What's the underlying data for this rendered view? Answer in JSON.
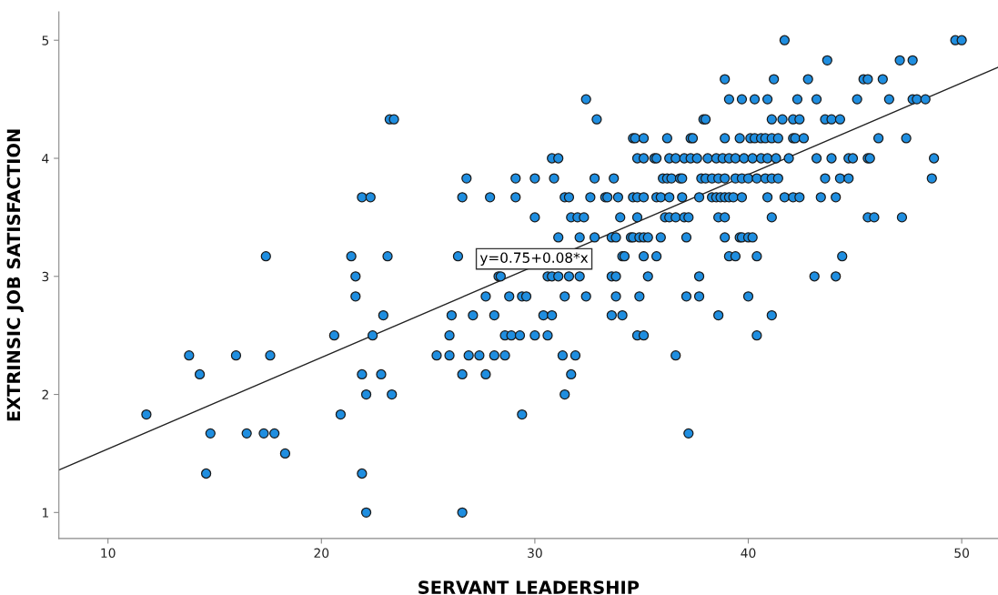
{
  "chart_data": {
    "type": "scatter",
    "xlabel": "SERVANT LEADERSHIP",
    "ylabel": "EXTRINSIC JOB SATISFACTION",
    "xlim": [
      7.7,
      51.7
    ],
    "ylim": [
      0.78,
      5.24
    ],
    "xticks": [
      10,
      20,
      30,
      40,
      50
    ],
    "yticks": [
      1,
      2,
      3,
      4,
      5
    ],
    "marker": "circle",
    "annotations": [
      "y=0.75+0.08*x"
    ],
    "series": [
      {
        "color": "#1f8ee0",
        "x": [
          41.7,
          49.7,
          50.0,
          43.7,
          47.1,
          47.7,
          38.9,
          41.2,
          42.8,
          45.4,
          45.6,
          46.3,
          32.4,
          39.1,
          39.7,
          40.3,
          40.9,
          42.3,
          43.2,
          45.1,
          46.6,
          47.7,
          47.9,
          48.3,
          23.2,
          23.4,
          32.9,
          37.9,
          38.0,
          41.1,
          41.6,
          42.1,
          42.4,
          43.6,
          43.9,
          44.3,
          34.6,
          34.7,
          35.1,
          36.2,
          37.3,
          37.4,
          38.9,
          39.6,
          40.1,
          40.3,
          40.6,
          40.8,
          41.1,
          41.4,
          42.1,
          42.2,
          42.6,
          46.1,
          47.4,
          30.8,
          31.1,
          34.8,
          35.1,
          35.6,
          35.7,
          36.3,
          36.6,
          37.0,
          37.3,
          37.6,
          38.1,
          38.5,
          38.8,
          39.1,
          39.4,
          39.8,
          40.2,
          40.6,
          40.9,
          41.3,
          41.9,
          43.2,
          43.9,
          44.7,
          44.9,
          45.6,
          45.7,
          48.7,
          26.8,
          29.1,
          30.0,
          30.9,
          32.8,
          33.7,
          36.0,
          36.2,
          36.4,
          36.8,
          36.9,
          37.8,
          38.0,
          38.3,
          38.6,
          38.9,
          39.4,
          39.7,
          40.0,
          40.4,
          40.8,
          41.1,
          41.4,
          43.6,
          44.3,
          44.7,
          48.6,
          21.9,
          22.3,
          26.6,
          27.9,
          29.1,
          31.4,
          31.6,
          32.6,
          33.3,
          33.4,
          33.9,
          34.6,
          34.8,
          35.1,
          35.7,
          35.9,
          36.3,
          36.9,
          37.7,
          38.3,
          38.5,
          38.7,
          38.9,
          39.1,
          39.3,
          39.7,
          40.9,
          41.7,
          42.1,
          42.4,
          43.4,
          44.1,
          30.0,
          31.7,
          32.0,
          32.3,
          34.0,
          34.8,
          36.1,
          36.3,
          36.6,
          37.0,
          37.2,
          38.6,
          38.9,
          41.1,
          45.6,
          45.9,
          47.2,
          31.1,
          32.1,
          32.8,
          33.6,
          33.8,
          34.5,
          34.6,
          34.9,
          35.1,
          35.3,
          35.9,
          37.1,
          38.9,
          39.6,
          39.7,
          40.0,
          40.2,
          17.4,
          21.4,
          23.1,
          26.4,
          34.1,
          34.2,
          35.1,
          35.7,
          39.1,
          39.4,
          40.4,
          44.4,
          21.6,
          28.3,
          28.4,
          30.6,
          30.8,
          31.1,
          31.6,
          32.1,
          33.6,
          33.8,
          35.3,
          37.7,
          43.1,
          44.1,
          21.6,
          27.7,
          28.8,
          29.4,
          29.6,
          31.4,
          32.4,
          33.8,
          34.9,
          37.1,
          37.7,
          40.0,
          22.9,
          26.1,
          27.1,
          28.1,
          30.4,
          30.8,
          33.6,
          34.1,
          38.6,
          41.1,
          20.6,
          22.4,
          26.0,
          28.6,
          28.9,
          29.3,
          30.0,
          30.6,
          34.8,
          35.1,
          40.4,
          13.8,
          16.0,
          17.6,
          25.4,
          26.0,
          26.9,
          27.4,
          28.1,
          28.6,
          31.3,
          31.9,
          36.6,
          14.3,
          21.9,
          22.8,
          26.6,
          27.7,
          31.7,
          22.1,
          23.3,
          31.4,
          11.8,
          20.9,
          29.4,
          14.8,
          16.5,
          17.3,
          17.8,
          37.2,
          18.3,
          14.6,
          21.9,
          22.1,
          26.6
        ],
        "values": [
          5,
          5,
          5,
          4.83,
          4.83,
          4.83,
          4.67,
          4.67,
          4.67,
          4.67,
          4.67,
          4.67,
          4.5,
          4.5,
          4.5,
          4.5,
          4.5,
          4.5,
          4.5,
          4.5,
          4.5,
          4.5,
          4.5,
          4.5,
          4.33,
          4.33,
          4.33,
          4.33,
          4.33,
          4.33,
          4.33,
          4.33,
          4.33,
          4.33,
          4.33,
          4.33,
          4.17,
          4.17,
          4.17,
          4.17,
          4.17,
          4.17,
          4.17,
          4.17,
          4.17,
          4.17,
          4.17,
          4.17,
          4.17,
          4.17,
          4.17,
          4.17,
          4.17,
          4.17,
          4.17,
          4,
          4,
          4,
          4,
          4,
          4,
          4,
          4,
          4,
          4,
          4,
          4,
          4,
          4,
          4,
          4,
          4,
          4,
          4,
          4,
          4,
          4,
          4,
          4,
          4,
          4,
          4,
          4,
          4,
          3.83,
          3.83,
          3.83,
          3.83,
          3.83,
          3.83,
          3.83,
          3.83,
          3.83,
          3.83,
          3.83,
          3.83,
          3.83,
          3.83,
          3.83,
          3.83,
          3.83,
          3.83,
          3.83,
          3.83,
          3.83,
          3.83,
          3.83,
          3.83,
          3.83,
          3.83,
          3.83,
          3.67,
          3.67,
          3.67,
          3.67,
          3.67,
          3.67,
          3.67,
          3.67,
          3.67,
          3.67,
          3.67,
          3.67,
          3.67,
          3.67,
          3.67,
          3.67,
          3.67,
          3.67,
          3.67,
          3.67,
          3.67,
          3.67,
          3.67,
          3.67,
          3.67,
          3.67,
          3.67,
          3.67,
          3.67,
          3.67,
          3.67,
          3.67,
          3.5,
          3.5,
          3.5,
          3.5,
          3.5,
          3.5,
          3.5,
          3.5,
          3.5,
          3.5,
          3.5,
          3.5,
          3.5,
          3.5,
          3.5,
          3.5,
          3.5,
          3.33,
          3.33,
          3.33,
          3.33,
          3.33,
          3.33,
          3.33,
          3.33,
          3.33,
          3.33,
          3.33,
          3.33,
          3.33,
          3.33,
          3.33,
          3.33,
          3.33,
          3.17,
          3.17,
          3.17,
          3.17,
          3.17,
          3.17,
          3.17,
          3.17,
          3.17,
          3.17,
          3.17,
          3.17,
          3,
          3,
          3,
          3,
          3,
          3,
          3,
          3,
          3,
          3,
          3,
          3,
          3,
          3,
          2.83,
          2.83,
          2.83,
          2.83,
          2.83,
          2.83,
          2.83,
          2.83,
          2.83,
          2.83,
          2.83,
          2.83,
          2.67,
          2.67,
          2.67,
          2.67,
          2.67,
          2.67,
          2.67,
          2.67,
          2.67,
          2.67,
          2.5,
          2.5,
          2.5,
          2.5,
          2.5,
          2.5,
          2.5,
          2.5,
          2.5,
          2.5,
          2.5,
          2.33,
          2.33,
          2.33,
          2.33,
          2.33,
          2.33,
          2.33,
          2.33,
          2.33,
          2.33,
          2.33,
          2.33,
          2.17,
          2.17,
          2.17,
          2.17,
          2.17,
          2.17,
          2,
          2,
          2,
          1.83,
          1.83,
          1.83,
          1.67,
          1.67,
          1.67,
          1.67,
          1.67,
          1.5,
          1.33,
          1.33,
          1,
          1
        ]
      },
      {
        "type": "line",
        "color": "#222222",
        "x": [
          7.7,
          51.7
        ],
        "values": [
          1.36,
          4.77
        ],
        "marker": "none"
      }
    ]
  }
}
